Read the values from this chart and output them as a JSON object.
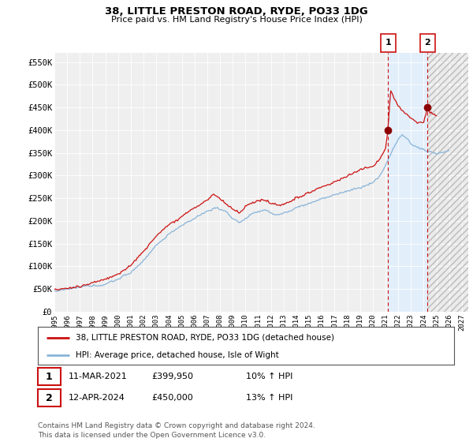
{
  "title": "38, LITTLE PRESTON ROAD, RYDE, PO33 1DG",
  "subtitle": "Price paid vs. HM Land Registry's House Price Index (HPI)",
  "ylabel_ticks": [
    "£0",
    "£50K",
    "£100K",
    "£150K",
    "£200K",
    "£250K",
    "£300K",
    "£350K",
    "£400K",
    "£450K",
    "£500K",
    "£550K"
  ],
  "ytick_values": [
    0,
    50000,
    100000,
    150000,
    200000,
    250000,
    300000,
    350000,
    400000,
    450000,
    500000,
    550000
  ],
  "ylim": [
    0,
    570000
  ],
  "xlim_start": 1995.0,
  "xlim_end": 2027.5,
  "x_ticks": [
    1995,
    1996,
    1997,
    1998,
    1999,
    2000,
    2001,
    2002,
    2003,
    2004,
    2005,
    2006,
    2007,
    2008,
    2009,
    2010,
    2011,
    2012,
    2013,
    2014,
    2015,
    2016,
    2017,
    2018,
    2019,
    2020,
    2021,
    2022,
    2023,
    2024,
    2025,
    2026,
    2027
  ],
  "hpi_color": "#89b4d9",
  "price_color": "#cc1111",
  "shaded_region_color": "#ddeeff",
  "sale1_x": 2021.19,
  "sale1_y": 399950,
  "sale2_x": 2024.29,
  "sale2_y": 450000,
  "vline_color": "#cc1111",
  "marker_color": "#8b0000",
  "legend_price_label": "38, LITTLE PRESTON ROAD, RYDE, PO33 1DG (detached house)",
  "legend_hpi_label": "HPI: Average price, detached house, Isle of Wight",
  "annotation1_date": "11-MAR-2021",
  "annotation1_price": "£399,950",
  "annotation1_hpi": "10% ↑ HPI",
  "annotation2_date": "12-APR-2024",
  "annotation2_price": "£450,000",
  "annotation2_hpi": "13% ↑ HPI",
  "footer": "Contains HM Land Registry data © Crown copyright and database right 2024.\nThis data is licensed under the Open Government Licence v3.0.",
  "background_color": "#ffffff",
  "plot_bg_color": "#efefef"
}
